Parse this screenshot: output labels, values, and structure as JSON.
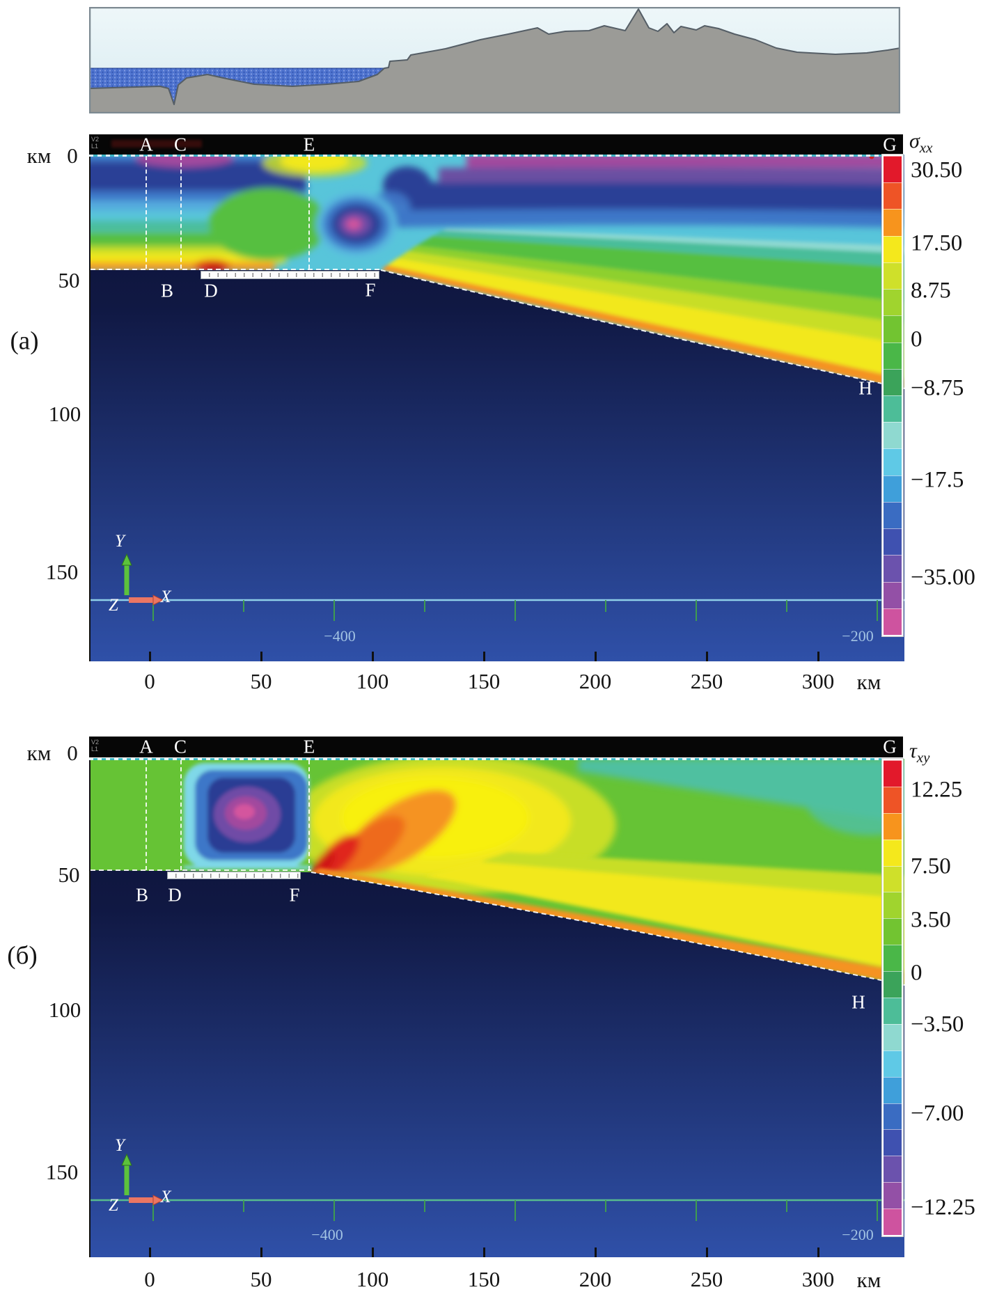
{
  "common": {
    "x_unit": "км",
    "y_unit": "км",
    "x_ticks": [
      "0",
      "50",
      "100",
      "150",
      "200",
      "250",
      "300"
    ],
    "y_ticks": [
      "0",
      "50",
      "100",
      "150"
    ],
    "inner": {
      "m400": "−400",
      "m200": "−200"
    },
    "letters": {
      "A": "A",
      "B": "B",
      "C": "C",
      "D": "D",
      "E": "E",
      "F": "F",
      "G": "G",
      "H": "H"
    },
    "triad": {
      "x": "X",
      "y": "Y",
      "z": "Z"
    },
    "watermark": {
      "v2": "V2",
      "l1": "L1"
    }
  },
  "panel_a": {
    "label": "(а)",
    "legend_symbol": "σ",
    "legend_sub": "xx",
    "cb": [
      "30.50",
      "17.50",
      "8.75",
      "0",
      "−8.75",
      "−17.5",
      "−35.00"
    ]
  },
  "panel_b": {
    "label": "(б)",
    "legend_symbol": "τ",
    "legend_sub": "xy",
    "cb": [
      "12.25",
      "7.50",
      "3.50",
      "0",
      "−3.50",
      "−7.00",
      "−12.25"
    ]
  },
  "colors": {
    "colorbar": [
      "#e2192b",
      "#ee5426",
      "#f7941d",
      "#f4e81c",
      "#cfe02a",
      "#a0d42e",
      "#72c431",
      "#4ab748",
      "#3ba35a",
      "#4dbd98",
      "#8fd9d0",
      "#5fc9e6",
      "#3f9fda",
      "#3a6cc2",
      "#3f51b0",
      "#6b52ad",
      "#9350a6",
      "#ce539f"
    ],
    "sky": "#e3f0f4",
    "land": "#9b9b97",
    "water": "#4e73ce",
    "mantle_dark": "#0c1134",
    "mantle_light": "#2f50a8",
    "crust_a_base": "#58c5da",
    "crust_b_base": "#66c335"
  },
  "chart_data": [
    {
      "type": "area",
      "title": "Surface topography and bathymetry profile above the model section",
      "series": [
        {
          "name": "land relief",
          "description": "gray landmass rising from coastal plain to mountain peaks near x≈200 км, descending to plateau toward right edge"
        },
        {
          "name": "sea",
          "description": "hatched blue water body on the left with deep narrow trench notch near the coast"
        }
      ]
    },
    {
      "type": "heatmap",
      "panel": "(а)",
      "title": "σxx",
      "xlabel_unit": "км",
      "ylabel_unit": "км",
      "x_ticks": [
        0,
        50,
        100,
        150,
        200,
        250,
        300
      ],
      "y_ticks": [
        0,
        50,
        100,
        150
      ],
      "colorbar_tick_labels": [
        30.5,
        17.5,
        8.75,
        0,
        -8.75,
        -17.5,
        -35.0
      ],
      "inner_axis_labels": [
        -400,
        -200
      ],
      "section_markers": {
        "A": {
          "x_km": -2,
          "depth_km": 0
        },
        "B": {
          "x_km": 8,
          "depth_km": 50
        },
        "C": {
          "x_km": 14,
          "depth_km": 0
        },
        "D": {
          "x_km": 27,
          "depth_km": 50
        },
        "E": {
          "x_km": 72,
          "depth_km": 0
        },
        "F": {
          "x_km": 99,
          "depth_km": 50
        },
        "G": {
          "x_km": 332,
          "depth_km": 0
        },
        "H": {
          "x_km": 321,
          "depth_km": 91
        }
      },
      "features": [
        "compressive maximum (yellow–orange–red) at crust base between x≈−25 and 30 км, ~40–48 км depth",
        "tensile minimum (magenta/purple) along surface near A–C and from x≈150 to 330 км",
        "yellow maximum at surface near E",
        "magenta–blue anomaly just right of line E at ~25–35 км depth",
        "yellow–orange band following the subducting slab top dipping from F (≈99 км, 48 км) to H (≈330 км, 110 км)",
        "uniform dark navy mantle wedge below the slab interface"
      ]
    },
    {
      "type": "heatmap",
      "panel": "(б)",
      "title": "τxy",
      "xlabel_unit": "км",
      "ylabel_unit": "км",
      "x_ticks": [
        0,
        50,
        100,
        150,
        200,
        250,
        300
      ],
      "y_ticks": [
        0,
        50,
        100,
        150
      ],
      "colorbar_tick_labels": [
        12.25,
        7.5,
        3.5,
        0,
        -3.5,
        -7.0,
        -12.25
      ],
      "inner_axis_labels": [
        -400,
        -200
      ],
      "section_markers": {
        "A": {
          "x_km": -2,
          "depth_km": 0
        },
        "B": {
          "x_km": -4,
          "depth_km": 50
        },
        "C": {
          "x_km": 14,
          "depth_km": 0
        },
        "D": {
          "x_km": 11,
          "depth_km": 50
        },
        "E": {
          "x_km": 72,
          "depth_km": 0
        },
        "F": {
          "x_km": 65,
          "depth_km": 50
        },
        "G": {
          "x_km": 332,
          "depth_km": 0
        },
        "H": {
          "x_km": 318,
          "depth_km": 94
        }
      },
      "features": [
        "negative shear vortex (concentric cyan–blue–navy–violet with magenta core) occupying block C–E, 5–45 км depth",
        "strong positive shear (red) concentration at F fanning up-right into orange and broad yellow lobe",
        "near-zero green background in the crust left of C and far right",
        "teal slightly-negative patch along upper right edge",
        "yellow positive band along the slab interface widening toward H",
        "uniform dark navy mantle below the slab"
      ]
    }
  ]
}
